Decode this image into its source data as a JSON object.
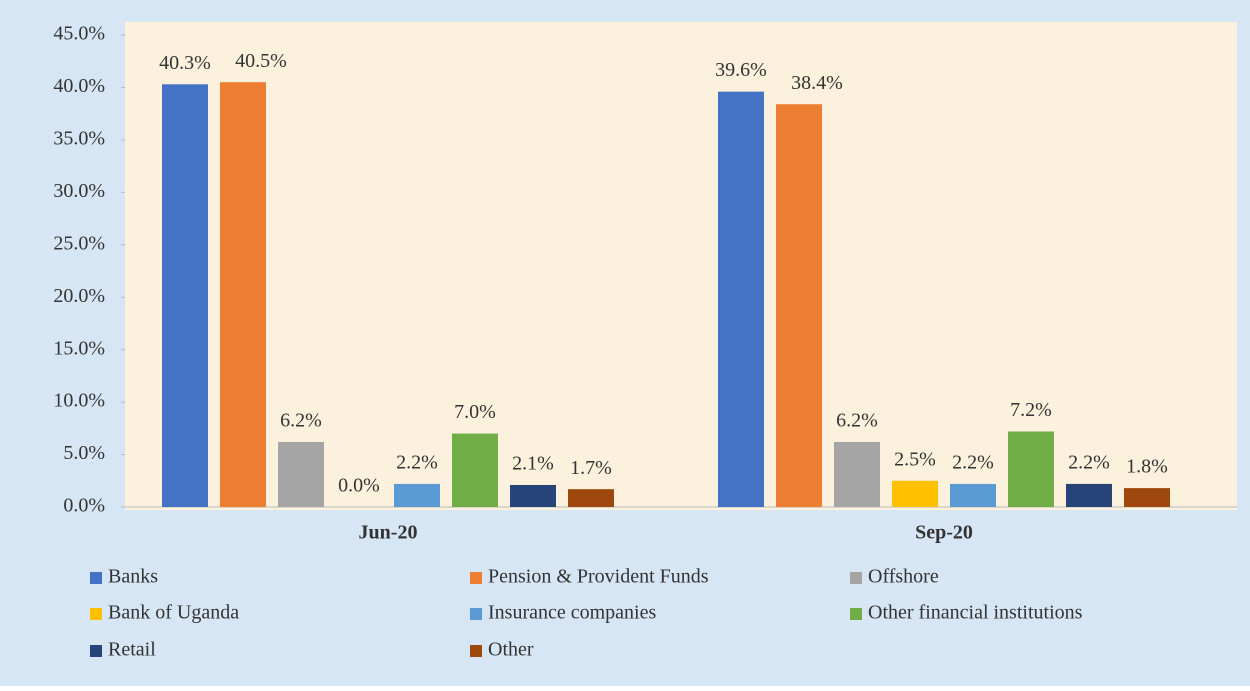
{
  "chart_data": {
    "type": "bar",
    "categories": [
      "Jun-20",
      "Sep-20"
    ],
    "series": [
      {
        "name": "Banks",
        "color": "#4472c4",
        "values": [
          40.3,
          39.6
        ],
        "value_labels": [
          "40.3%",
          "39.6%"
        ]
      },
      {
        "name": "Pension & Provident Funds",
        "color": "#ed7d31",
        "values": [
          40.5,
          38.4
        ],
        "value_labels": [
          "40.5%",
          "38.4%"
        ]
      },
      {
        "name": "Offshore",
        "color": "#a5a5a5",
        "values": [
          6.2,
          6.2
        ],
        "value_labels": [
          "6.2%",
          "6.2%"
        ]
      },
      {
        "name": "Bank of Uganda",
        "color": "#ffc000",
        "values": [
          0.0,
          2.5
        ],
        "value_labels": [
          "0.0%",
          "2.5%"
        ]
      },
      {
        "name": "Insurance companies",
        "color": "#5b9bd5",
        "values": [
          2.2,
          2.2
        ],
        "value_labels": [
          "2.2%",
          "2.2%"
        ]
      },
      {
        "name": "Other financial institutions",
        "color": "#70ad47",
        "values": [
          7.0,
          7.2
        ],
        "value_labels": [
          "7.0%",
          "7.2%"
        ]
      },
      {
        "name": "Retail",
        "color": "#264478",
        "values": [
          2.1,
          2.2
        ],
        "value_labels": [
          "2.1%",
          "2.2%"
        ]
      },
      {
        "name": "Other",
        "color": "#9e480e",
        "values": [
          1.7,
          1.8
        ],
        "value_labels": [
          "1.7%",
          "1.8%"
        ]
      }
    ],
    "ylim": [
      0,
      45
    ],
    "yticks": [
      {
        "value": 0,
        "label": "0.0%"
      },
      {
        "value": 5,
        "label": "5.0%"
      },
      {
        "value": 10,
        "label": "10.0%"
      },
      {
        "value": 15,
        "label": "15.0%"
      },
      {
        "value": 20,
        "label": "20.0%"
      },
      {
        "value": 25,
        "label": "25.0%"
      },
      {
        "value": 30,
        "label": "30.0%"
      },
      {
        "value": 35,
        "label": "35.0%"
      },
      {
        "value": 40,
        "label": "40.0%"
      },
      {
        "value": 45,
        "label": "45.0%"
      }
    ],
    "legend": "bottom"
  }
}
